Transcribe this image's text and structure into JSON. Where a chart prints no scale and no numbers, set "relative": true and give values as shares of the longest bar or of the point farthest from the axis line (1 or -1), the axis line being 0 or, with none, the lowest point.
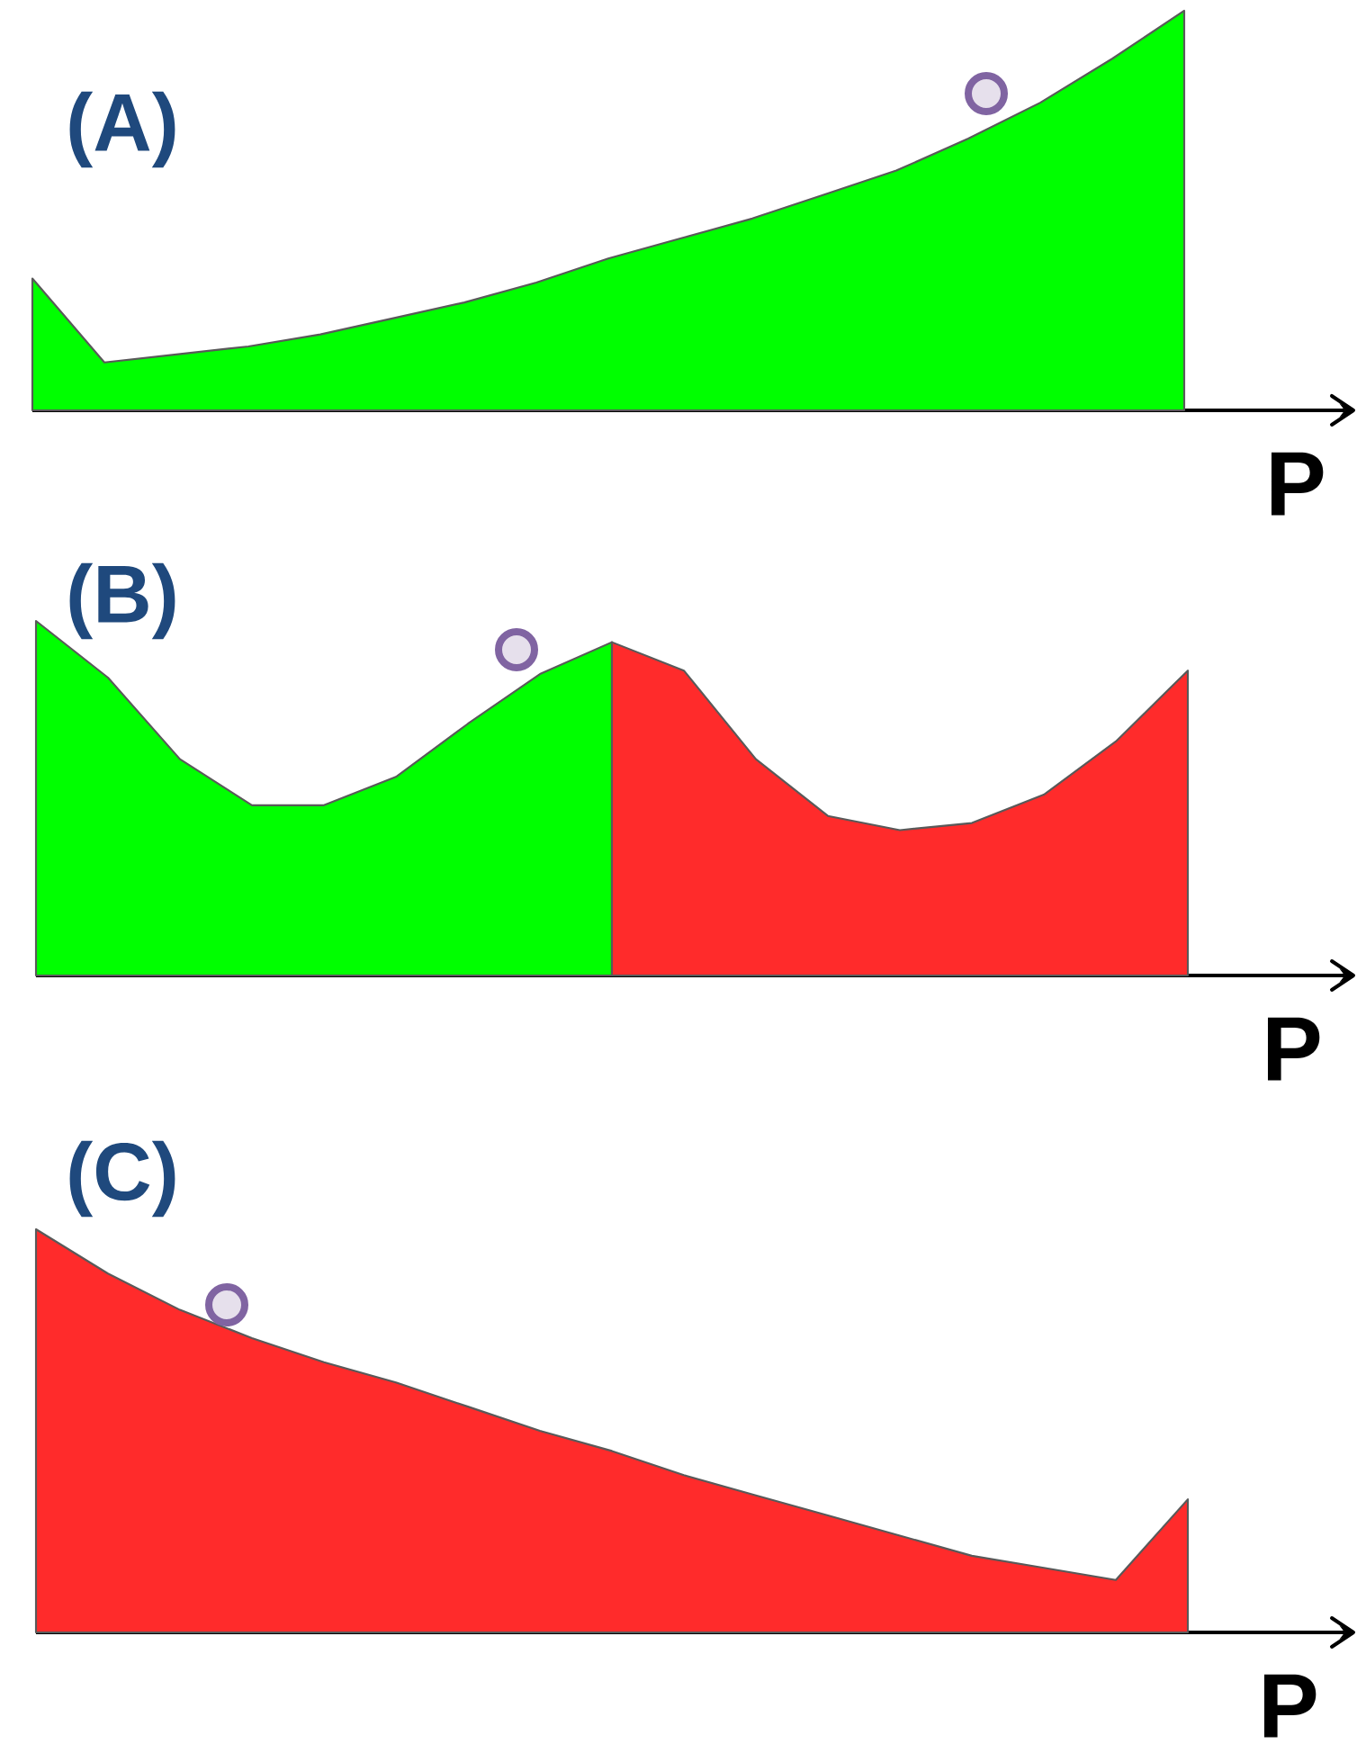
{
  "chart_data": [
    {
      "type": "area",
      "title": "(A)",
      "xlabel": "P",
      "relative": true,
      "categories": [
        null,
        null,
        null,
        null,
        null,
        null,
        null,
        null,
        null,
        null,
        null,
        null,
        null,
        null,
        null,
        null,
        null
      ],
      "series": [
        {
          "color": "#00ff00",
          "values": [
            0.33,
            0.12,
            0.14,
            0.16,
            0.19,
            0.23,
            0.27,
            0.32,
            0.38,
            0.43,
            0.48,
            0.54,
            0.6,
            0.68,
            0.77,
            0.88,
            1
          ]
        }
      ]
    },
    {
      "type": "area",
      "title": "(B)",
      "xlabel": "P",
      "relative": true,
      "categories": [
        null,
        null,
        null,
        null,
        null,
        null,
        null,
        null,
        null,
        null,
        null,
        null,
        null,
        null,
        null,
        null,
        null
      ],
      "series": [
        {
          "color": "#00ff00",
          "values": [
            1,
            0.84,
            0.61,
            0.48,
            0.48,
            0.56,
            0.71,
            0.85,
            0.94,
            null,
            null,
            null,
            null,
            null,
            null,
            null,
            null
          ]
        },
        {
          "color": "#ff2b2b",
          "values": [
            null,
            null,
            null,
            null,
            null,
            null,
            null,
            null,
            0.94,
            0.86,
            0.61,
            0.45,
            0.41,
            0.43,
            0.51,
            0.66,
            0.86
          ]
        }
      ]
    },
    {
      "type": "area",
      "title": "(C)",
      "xlabel": "P",
      "relative": true,
      "categories": [
        null,
        null,
        null,
        null,
        null,
        null,
        null,
        null,
        null,
        null,
        null,
        null,
        null,
        null,
        null,
        null,
        null
      ],
      "series": [
        {
          "color": "#ff2b2b",
          "values": [
            1,
            0.89,
            0.8,
            0.73,
            0.67,
            0.62,
            0.56,
            0.5,
            0.45,
            0.39,
            0.34,
            0.29,
            0.24,
            0.19,
            0.16,
            0.13,
            0.33
          ]
        }
      ]
    }
  ]
}
